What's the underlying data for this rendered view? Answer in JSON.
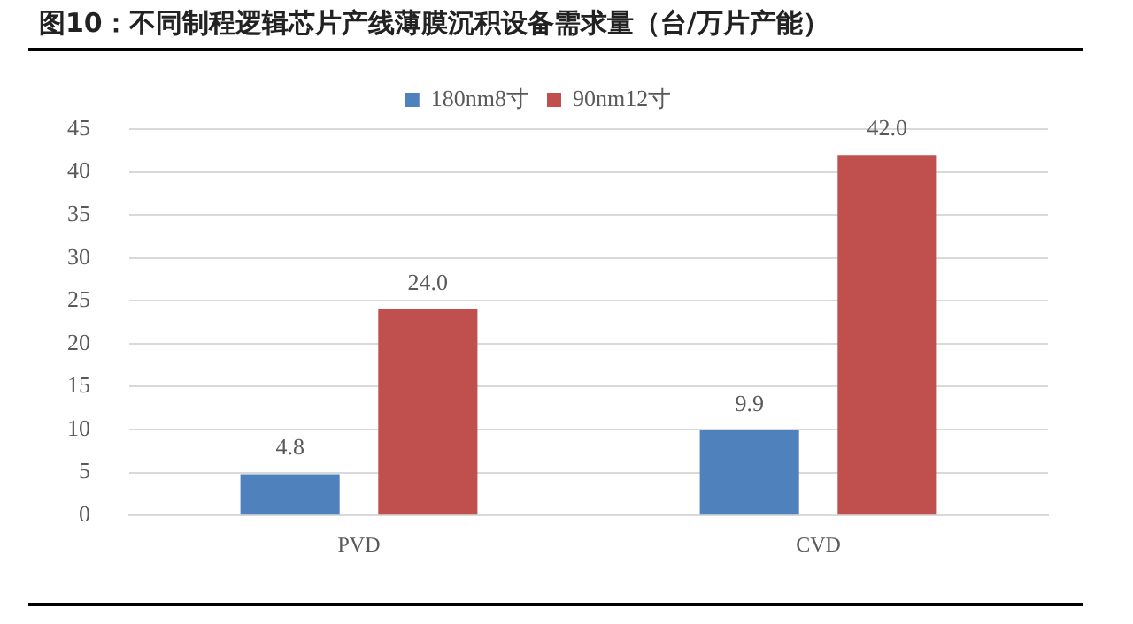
{
  "chart_data": {
    "type": "bar",
    "title": "图10：不同制程逻辑芯片产线薄膜沉积设备需求量（台/万片产能）",
    "categories": [
      "PVD",
      "CVD"
    ],
    "series": [
      {
        "name": "180nm8寸",
        "color": "#4f81bd",
        "values": [
          4.8,
          9.9
        ],
        "value_labels": [
          "4.8",
          "9.9"
        ]
      },
      {
        "name": "90nm12寸",
        "color": "#c0504d",
        "values": [
          24.0,
          42.0
        ],
        "value_labels": [
          "24.0",
          "42.0"
        ]
      }
    ],
    "ylim": [
      0,
      45
    ],
    "yticks": [
      0,
      5,
      10,
      15,
      20,
      25,
      30,
      35,
      40,
      45
    ],
    "grid": "y",
    "legend": "top"
  }
}
